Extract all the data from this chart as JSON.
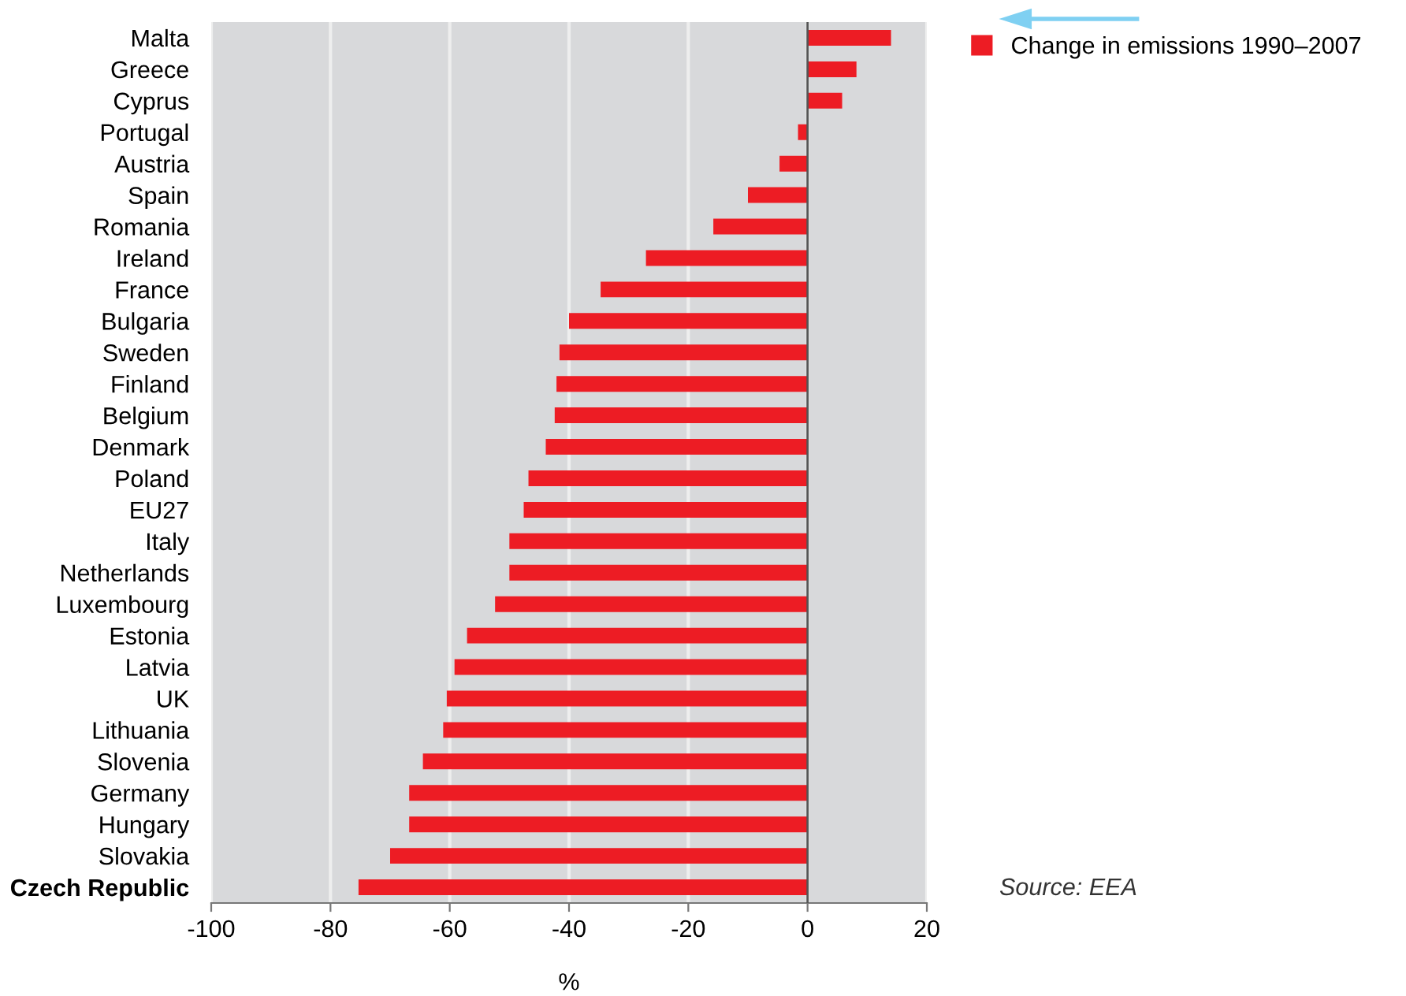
{
  "chart_data": {
    "type": "bar",
    "orientation": "horizontal",
    "xlabel": "%",
    "categories": [
      "Malta",
      "Greece",
      "Cyprus",
      "Portugal",
      "Austria",
      "Spain",
      "Romania",
      "Ireland",
      "France",
      "Bulgaria",
      "Sweden",
      "Finland",
      "Belgium",
      "Denmark",
      "Poland",
      "EU27",
      "Italy",
      "Netherlands",
      "Luxembourg",
      "Estonia",
      "Latvia",
      "UK",
      "Lithuania",
      "Slovenia",
      "Germany",
      "Hungary",
      "Slovakia",
      "Czech Republic"
    ],
    "series": [
      {
        "name": "Change in emissions 1990–2007",
        "color": "#ed1c24",
        "values": [
          14,
          8.2,
          5.8,
          -1.6,
          -4.7,
          -10,
          -15.8,
          -27.1,
          -34.7,
          -40,
          -41.6,
          -42.1,
          -42.4,
          -43.9,
          -46.8,
          -47.6,
          -50,
          -50,
          -52.4,
          -57.1,
          -59.2,
          -60.5,
          -61.1,
          -64.5,
          -66.8,
          -66.8,
          -70,
          -75.3
        ]
      }
    ],
    "xlim": [
      -100,
      20
    ],
    "xticks": [
      -100,
      -80,
      -60,
      -40,
      -20,
      0,
      20
    ],
    "grid": "x",
    "legend": "top right",
    "annotations": [
      "Source: EEA"
    ]
  }
}
